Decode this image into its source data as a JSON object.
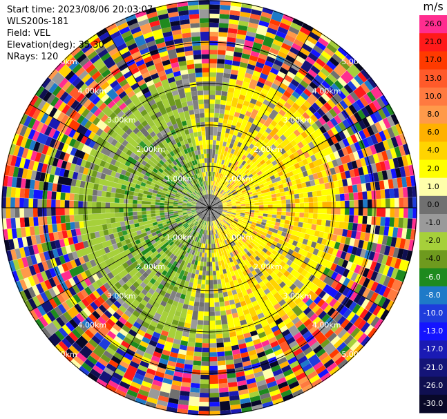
{
  "info": {
    "start_time": "Start time: 2023/08/06 20:03:07",
    "instrument": "WLS200s-181",
    "field": "Field: VEL",
    "elevation": "Elevation(deg): 35.30",
    "nrays": "NRays: 120"
  },
  "colorbar": {
    "title": "m/s",
    "bins": [
      {
        "label": "26.0",
        "color": "#ff2d8f"
      },
      {
        "label": "21.0",
        "color": "#ff1a1a"
      },
      {
        "label": "17.0",
        "color": "#ff3a00"
      },
      {
        "label": "13.0",
        "color": "#ff5a2a"
      },
      {
        "label": "10.0",
        "color": "#ff7a40"
      },
      {
        "label": "8.0",
        "color": "#ff9a4a"
      },
      {
        "label": "6.0",
        "color": "#ffb100"
      },
      {
        "label": "4.0",
        "color": "#ffd400"
      },
      {
        "label": "2.0",
        "color": "#ffff00"
      },
      {
        "label": "1.0",
        "color": "#ffffaa"
      },
      {
        "label": "0.0",
        "color": "#707070"
      },
      {
        "label": "-1.0",
        "color": "#9a9a9a"
      },
      {
        "label": "-2.0",
        "color": "#a6d03a"
      },
      {
        "label": "-4.0",
        "color": "#6e9a1e"
      },
      {
        "label": "-6.0",
        "color": "#1e8a1e"
      },
      {
        "label": "-8.0",
        "color": "#1e7ac8"
      },
      {
        "label": "-10.0",
        "color": "#1e3cdc"
      },
      {
        "label": "-13.0",
        "color": "#1414ff"
      },
      {
        "label": "-17.0",
        "color": "#1a1ab4"
      },
      {
        "label": "-21.0",
        "color": "#141478"
      },
      {
        "label": "-26.0",
        "color": "#0f0f50"
      },
      {
        "label": "-30.0",
        "color": "#080828"
      }
    ]
  },
  "range_rings": [
    "1.00km",
    "2.00km",
    "3.00km",
    "4.00km",
    "5.00km"
  ]
}
